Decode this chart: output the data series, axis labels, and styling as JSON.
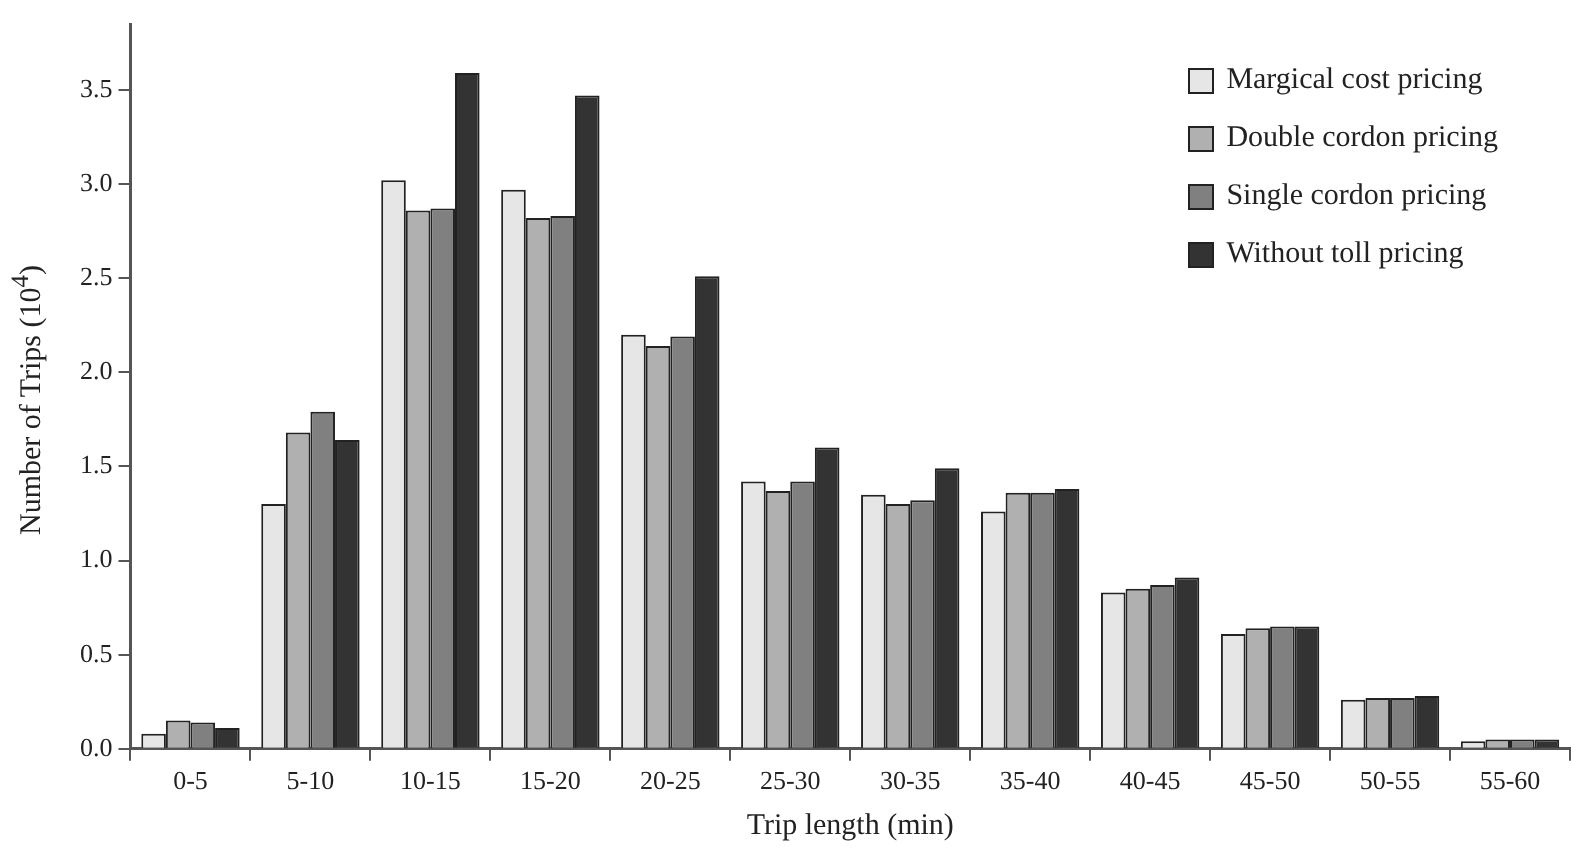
{
  "chart_data": {
    "type": "bar",
    "xlabel": "Trip length (min)",
    "ylabel": "Number of Trips (10$^{4}$)",
    "categories": [
      "0-5",
      "5-10",
      "10-15",
      "15-20",
      "20-25",
      "25-30",
      "30-35",
      "35-40",
      "40-45",
      "45-50",
      "50-55",
      "55-60"
    ],
    "series": [
      {
        "name": "Margical cost pricing",
        "color": "#e6e6e6",
        "values": [
          0.08,
          1.3,
          3.02,
          2.97,
          2.2,
          1.42,
          1.35,
          1.26,
          0.83,
          0.61,
          0.26,
          0.04
        ]
      },
      {
        "name": "Double cordon pricing",
        "color": "#b0b0b0",
        "values": [
          0.15,
          1.68,
          2.86,
          2.82,
          2.14,
          1.37,
          1.3,
          1.36,
          0.85,
          0.64,
          0.27,
          0.05
        ]
      },
      {
        "name": "Single cordon pricing",
        "color": "#808080",
        "values": [
          0.14,
          1.79,
          2.87,
          2.83,
          2.19,
          1.42,
          1.32,
          1.36,
          0.87,
          0.65,
          0.27,
          0.05
        ]
      },
      {
        "name": "Without toll pricing",
        "color": "#333333",
        "values": [
          0.11,
          1.64,
          3.59,
          3.47,
          2.51,
          1.6,
          1.49,
          1.38,
          0.91,
          0.65,
          0.28,
          0.05
        ]
      }
    ],
    "ylim": [
      0,
      3.85
    ],
    "yticks": [
      {
        "value": 0,
        "label": "0.0"
      },
      {
        "value": 0.5,
        "label": "0.5"
      },
      {
        "value": 1,
        "label": "1.0"
      },
      {
        "value": 1.5,
        "label": "1.5"
      },
      {
        "value": 2,
        "label": "2.0"
      },
      {
        "value": 2.5,
        "label": "2.5"
      },
      {
        "value": 3,
        "label": "3.0"
      },
      {
        "value": 3.5,
        "label": "3.5"
      }
    ],
    "grid": false,
    "legend": "top right"
  }
}
